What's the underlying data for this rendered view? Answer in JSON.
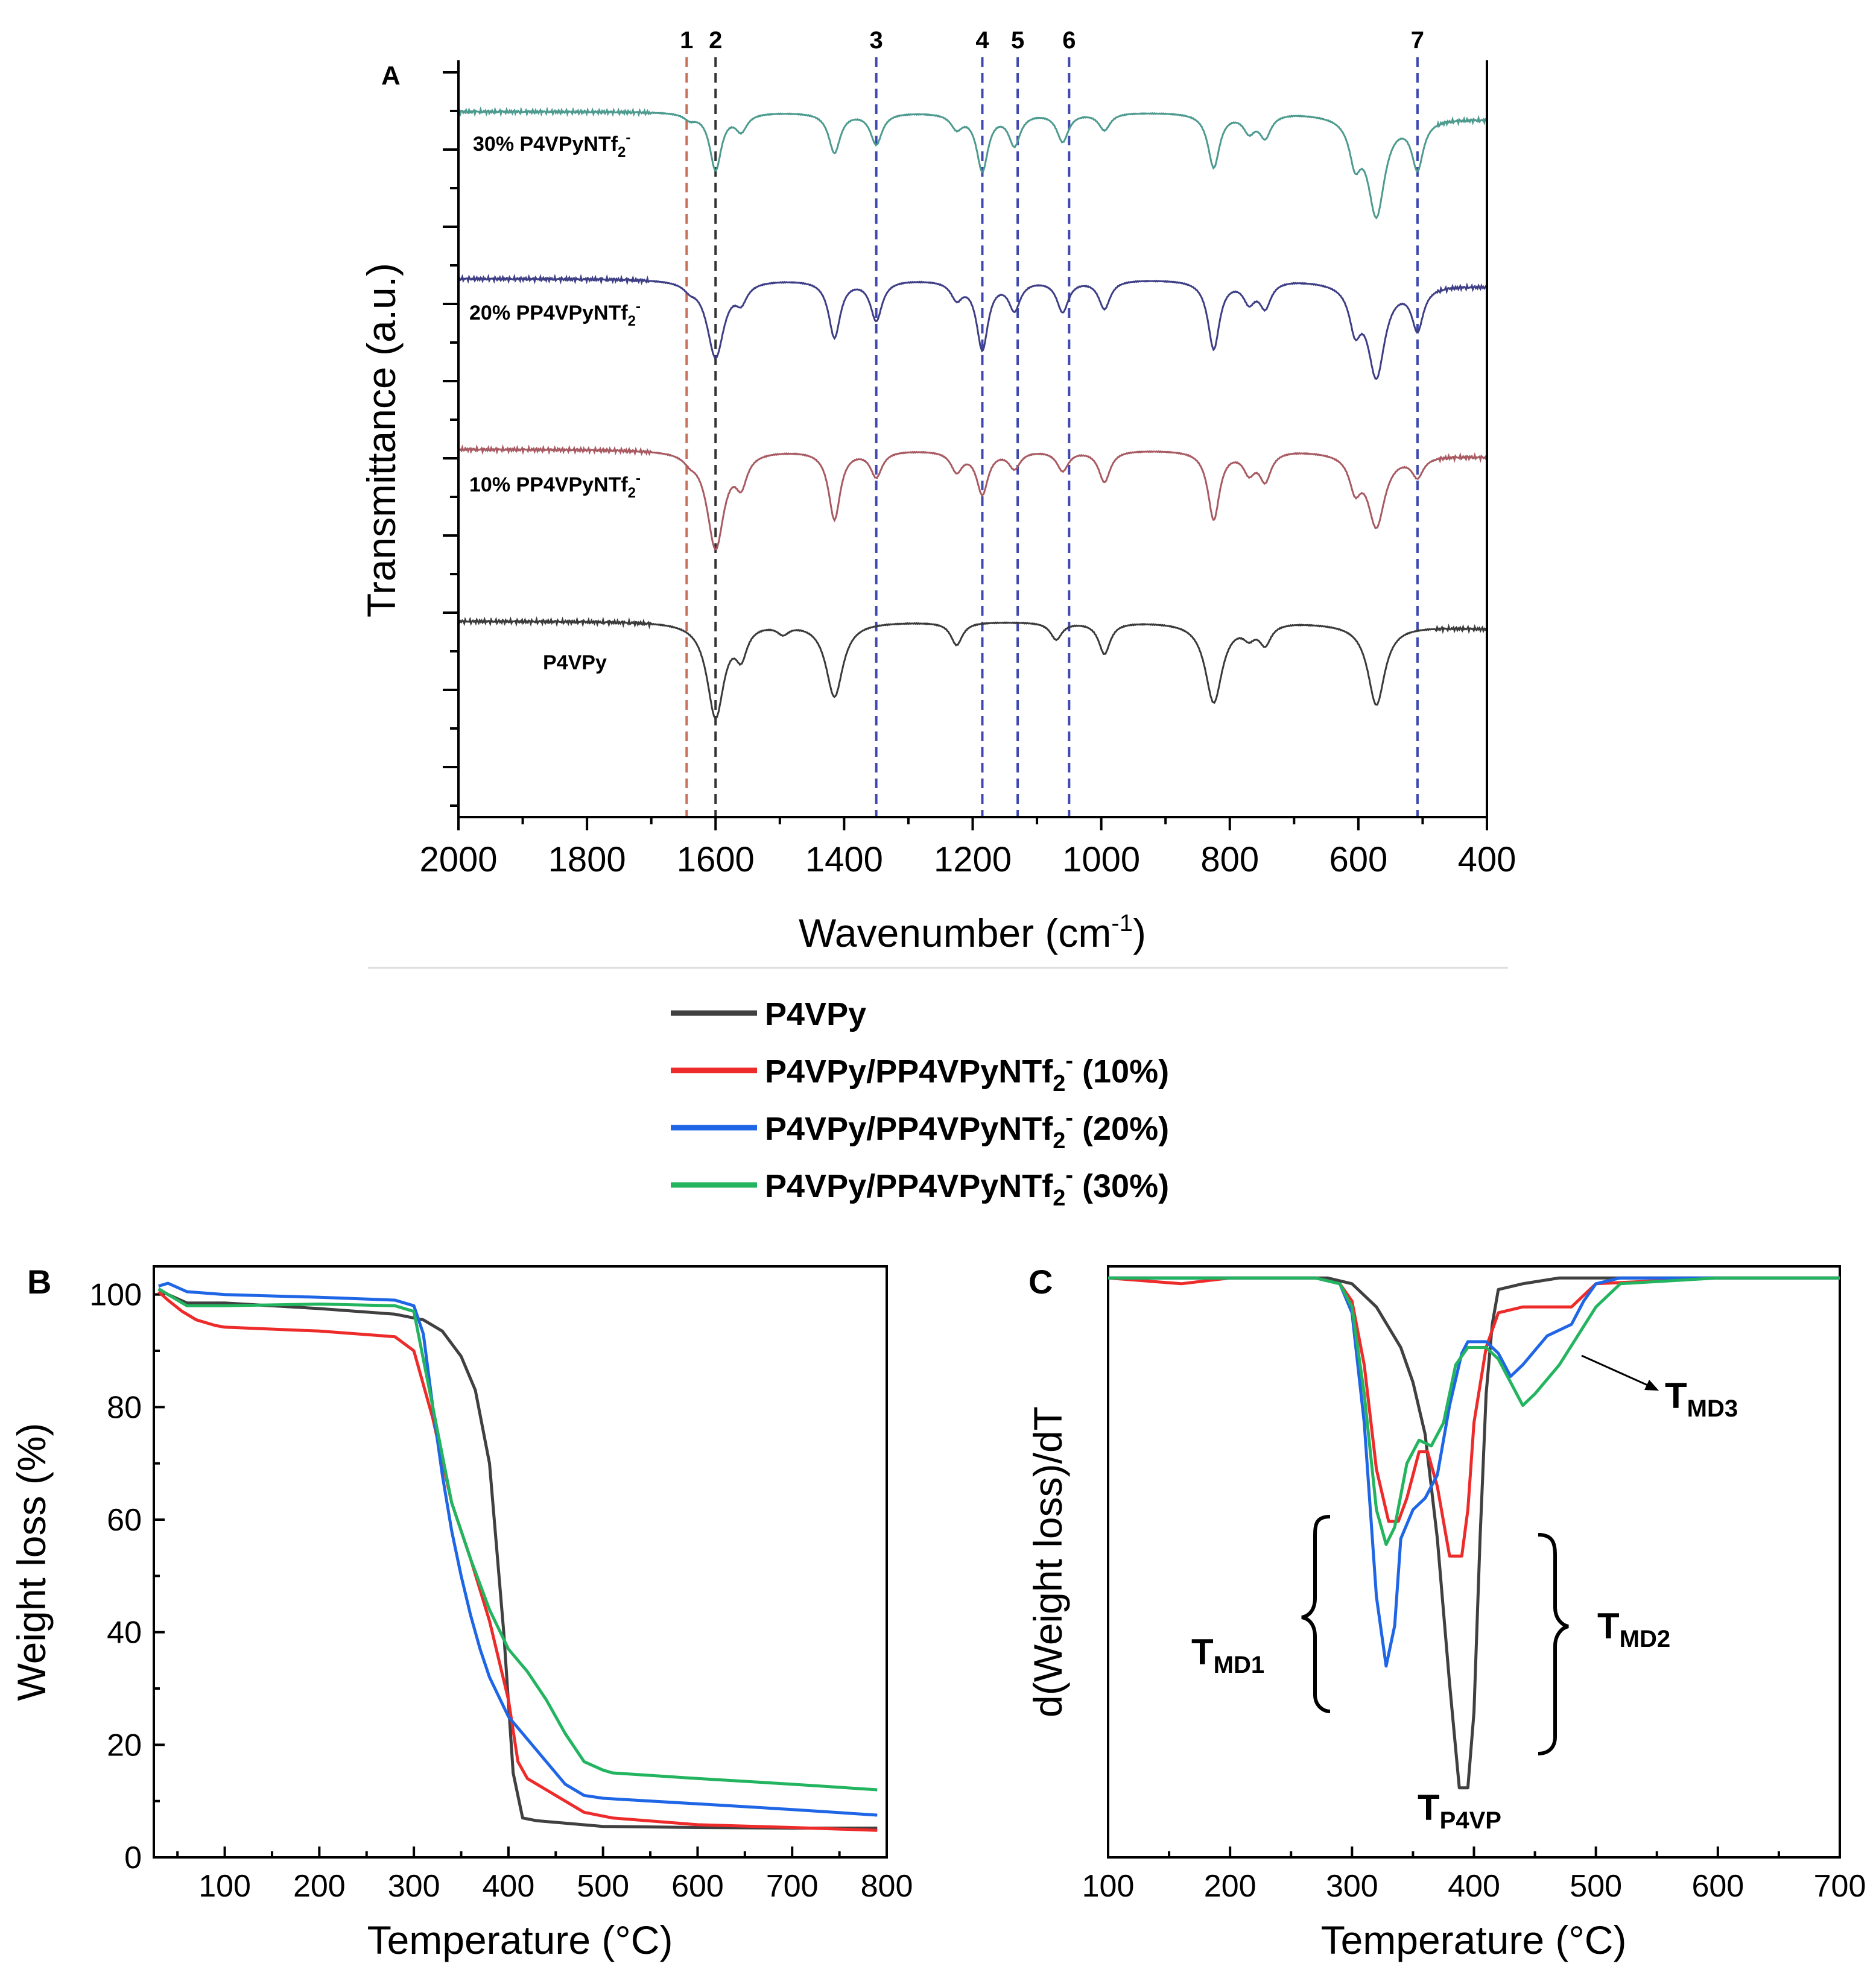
{
  "legend": {
    "items": [
      {
        "label": "P4VPy",
        "sub": "",
        "tail": "",
        "color": "#404040"
      },
      {
        "label": "P4VPy/PP4VPyNTf",
        "sub": "2",
        "sup": "-",
        "tail": " (10%)",
        "color": "#ee2b2b"
      },
      {
        "label": "P4VPy/PP4VPyNTf",
        "sub": "2",
        "sup": "-",
        "tail": " (20%)",
        "color": "#1f66e6"
      },
      {
        "label": "P4VPy/PP4VPyNTf",
        "sub": "2",
        "sup": "-",
        "tail": " (30%)",
        "color": "#22b45e"
      }
    ]
  },
  "chart_data": [
    {
      "panel": "A",
      "type": "line",
      "title": "",
      "xlabel": "Wavenumber (cm",
      "xlabel_sup": "-1",
      "xlabel_tail": ")",
      "ylabel": "Transmittance (a.u.)",
      "xlim": [
        2000,
        400
      ],
      "x_reversed": true,
      "xticks": [
        2000,
        1800,
        1600,
        1400,
        1200,
        1000,
        800,
        600,
        400
      ],
      "reference_lines": [
        {
          "label": "1",
          "x": 1645,
          "color": "#c8705a"
        },
        {
          "label": "2",
          "x": 1600,
          "color": "#333333"
        },
        {
          "label": "3",
          "x": 1350,
          "color": "#3e48b0"
        },
        {
          "label": "4",
          "x": 1185,
          "color": "#3e48b0"
        },
        {
          "label": "5",
          "x": 1130,
          "color": "#3e48b0"
        },
        {
          "label": "6",
          "x": 1050,
          "color": "#3e48b0"
        },
        {
          "label": "7",
          "x": 508,
          "color": "#3e48b0"
        }
      ],
      "series": [
        {
          "name": "30% P4VPyNTf",
          "sub": "2",
          "sup": "-",
          "color": "#4d9a8f",
          "offset": 0.0,
          "bands": [
            [
              1640,
              0.1
            ],
            [
              1600,
              1.0
            ],
            [
              1560,
              0.3
            ],
            [
              1415,
              0.7
            ],
            [
              1350,
              0.55
            ],
            [
              1225,
              0.25
            ],
            [
              1185,
              1.0
            ],
            [
              1135,
              0.55
            ],
            [
              1060,
              0.5
            ],
            [
              995,
              0.3
            ],
            [
              825,
              0.95
            ],
            [
              770,
              0.3
            ],
            [
              745,
              0.4
            ],
            [
              605,
              0.7
            ],
            [
              572,
              1.7
            ],
            [
              508,
              0.85
            ]
          ]
        },
        {
          "name": "20% PP4VPyNTf",
          "sub": "2",
          "sup": "-",
          "color": "#3e3e86",
          "offset": 1.0,
          "bands": [
            [
              1640,
              0.1
            ],
            [
              1600,
              1.35
            ],
            [
              1560,
              0.3
            ],
            [
              1415,
              1.0
            ],
            [
              1350,
              0.7
            ],
            [
              1225,
              0.3
            ],
            [
              1185,
              1.2
            ],
            [
              1135,
              0.5
            ],
            [
              1060,
              0.55
            ],
            [
              995,
              0.5
            ],
            [
              825,
              1.2
            ],
            [
              770,
              0.35
            ],
            [
              745,
              0.45
            ],
            [
              605,
              0.7
            ],
            [
              572,
              1.6
            ],
            [
              508,
              0.75
            ]
          ]
        },
        {
          "name": "10% PP4VPyNTf",
          "sub": "2",
          "sup": "-",
          "color": "#a85a62",
          "offset": 2.0,
          "bands": [
            [
              1640,
              0.1
            ],
            [
              1600,
              1.7
            ],
            [
              1560,
              0.5
            ],
            [
              1415,
              1.2
            ],
            [
              1350,
              0.45
            ],
            [
              1225,
              0.35
            ],
            [
              1185,
              0.75
            ],
            [
              1135,
              0.3
            ],
            [
              1060,
              0.35
            ],
            [
              995,
              0.55
            ],
            [
              825,
              1.2
            ],
            [
              770,
              0.35
            ],
            [
              745,
              0.5
            ],
            [
              605,
              0.55
            ],
            [
              572,
              1.25
            ],
            [
              508,
              0.35
            ]
          ]
        },
        {
          "name": "P4VPy",
          "sub": "",
          "sup": "",
          "color": "#3a3a3a",
          "offset": 3.0,
          "bands": [
            [
              1600,
              1.65
            ],
            [
              1560,
              0.5
            ],
            [
              1495,
              0.15
            ],
            [
              1415,
              1.3
            ],
            [
              1225,
              0.4
            ],
            [
              1070,
              0.3
            ],
            [
              995,
              0.55
            ],
            [
              825,
              1.4
            ],
            [
              770,
              0.2
            ],
            [
              745,
              0.35
            ],
            [
              572,
              1.4
            ]
          ]
        }
      ]
    },
    {
      "panel": "B",
      "type": "line",
      "title": "",
      "xlabel": "Temperature (°C)",
      "ylabel": "Weight loss (%)",
      "xlim": [
        25,
        800
      ],
      "ylim": [
        0,
        105
      ],
      "xticks": [
        100,
        200,
        300,
        400,
        500,
        600,
        700,
        800
      ],
      "yticks": [
        0,
        20,
        40,
        60,
        80,
        100
      ],
      "series": [
        {
          "name": "P4VPy",
          "color": "#404040",
          "x": [
            30,
            40,
            60,
            100,
            200,
            280,
            310,
            330,
            350,
            365,
            380,
            395,
            405,
            415,
            430,
            500,
            600,
            700,
            790
          ],
          "y": [
            101,
            100,
            98.5,
            98.5,
            97.5,
            96.5,
            95.5,
            93.5,
            89,
            83,
            70,
            40,
            15,
            7,
            6.5,
            5.5,
            5.3,
            5.2,
            5.2
          ]
        },
        {
          "name": "P4VPy/PP4VPyNTf2- (10%)",
          "color": "#ee2b2b",
          "x": [
            30,
            40,
            55,
            70,
            90,
            100,
            200,
            280,
            300,
            320,
            340,
            360,
            380,
            400,
            410,
            420,
            440,
            460,
            480,
            510,
            600,
            700,
            790
          ],
          "y": [
            100.5,
            99,
            97,
            95.5,
            94.5,
            94.2,
            93.5,
            92.5,
            90,
            78,
            63,
            53,
            42,
            28,
            17,
            14,
            12,
            10,
            8,
            7,
            5.8,
            5.3,
            4.8
          ]
        },
        {
          "name": "P4VPy/PP4VPyNTf2- (20%)",
          "color": "#1f66e6",
          "x": [
            30,
            40,
            60,
            100,
            200,
            280,
            300,
            310,
            320,
            330,
            340,
            350,
            360,
            370,
            380,
            400,
            420,
            440,
            460,
            480,
            500,
            600,
            700,
            790
          ],
          "y": [
            101.5,
            102,
            100.5,
            100,
            99.5,
            99,
            98,
            93,
            80,
            68,
            58,
            50,
            43,
            37,
            32,
            25,
            21,
            17,
            13,
            11,
            10.5,
            9.5,
            8.5,
            7.5
          ]
        },
        {
          "name": "P4VPy/PP4VPyNTf2- (30%)",
          "color": "#22b45e",
          "x": [
            30,
            40,
            60,
            100,
            200,
            280,
            300,
            320,
            340,
            360,
            380,
            400,
            420,
            440,
            460,
            480,
            500,
            510,
            600,
            700,
            790
          ],
          "y": [
            101,
            100,
            98,
            98,
            98.3,
            98,
            97,
            80,
            63,
            53,
            44,
            37,
            33,
            28,
            22,
            17,
            15.5,
            15,
            14,
            13,
            12
          ]
        }
      ]
    },
    {
      "panel": "C",
      "type": "line",
      "title": "",
      "xlabel": "Temperature (°C)",
      "ylabel": "d(Weight loss)/dT",
      "xlim": [
        100,
        700
      ],
      "ylim": [
        -100,
        2
      ],
      "xticks": [
        100,
        200,
        300,
        400,
        500,
        600,
        700
      ],
      "yticks": [],
      "series": [
        {
          "name": "P4VPy",
          "color": "#404040",
          "x": [
            100,
            200,
            280,
            300,
            320,
            340,
            350,
            360,
            370,
            380,
            388,
            395,
            400,
            405,
            410,
            415,
            420,
            440,
            470,
            500,
            600,
            700
          ],
          "y": [
            0,
            0,
            0,
            -1,
            -5,
            -12,
            -18,
            -27,
            -45,
            -70,
            -88,
            -88,
            -75,
            -45,
            -20,
            -8,
            -2,
            -1,
            0,
            0,
            0,
            0
          ]
        },
        {
          "name": "P4VPy/PP4VPyNTf2- (10%)",
          "color": "#ee2b2b",
          "x": [
            100,
            160,
            200,
            270,
            290,
            300,
            310,
            320,
            330,
            338,
            345,
            355,
            362,
            370,
            380,
            390,
            395,
            400,
            410,
            420,
            440,
            480,
            490,
            500,
            600,
            700
          ],
          "y": [
            0,
            -1,
            0,
            0,
            -1,
            -4,
            -15,
            -33,
            -42,
            -42,
            -38,
            -30,
            -30,
            -36,
            -48,
            -48,
            -40,
            -25,
            -12,
            -6,
            -5,
            -5,
            -3,
            -1,
            0,
            0
          ]
        },
        {
          "name": "P4VPy/PP4VPyNTf2- (20%)",
          "color": "#1f66e6",
          "x": [
            100,
            200,
            270,
            290,
            300,
            310,
            320,
            328,
            335,
            340,
            350,
            360,
            370,
            380,
            390,
            395,
            410,
            420,
            430,
            440,
            460,
            480,
            490,
            500,
            520,
            600,
            700
          ],
          "y": [
            0,
            0,
            0,
            -1,
            -6,
            -25,
            -55,
            -67,
            -60,
            -45,
            -40,
            -38,
            -34,
            -22,
            -13,
            -11,
            -11,
            -13,
            -17,
            -15,
            -10,
            -8,
            -4,
            -1,
            0,
            0,
            0
          ]
        },
        {
          "name": "P4VPy/PP4VPyNTf2- (30%)",
          "color": "#22b45e",
          "x": [
            100,
            200,
            270,
            290,
            300,
            310,
            320,
            328,
            335,
            345,
            355,
            365,
            375,
            385,
            395,
            410,
            420,
            430,
            440,
            450,
            470,
            500,
            520,
            600,
            700
          ],
          "y": [
            0,
            0,
            0,
            -1,
            -5,
            -20,
            -40,
            -46,
            -43,
            -32,
            -28,
            -29,
            -25,
            -15,
            -12,
            -12,
            -14,
            -18,
            -22,
            -20,
            -15,
            -5,
            -1,
            0,
            0
          ]
        }
      ],
      "annotations": [
        {
          "label": "T",
          "sub": "MD1"
        },
        {
          "label": "T",
          "sub": "MD2"
        },
        {
          "label": "T",
          "sub": "MD3"
        },
        {
          "label": "T",
          "sub": "P4VP"
        }
      ]
    }
  ]
}
